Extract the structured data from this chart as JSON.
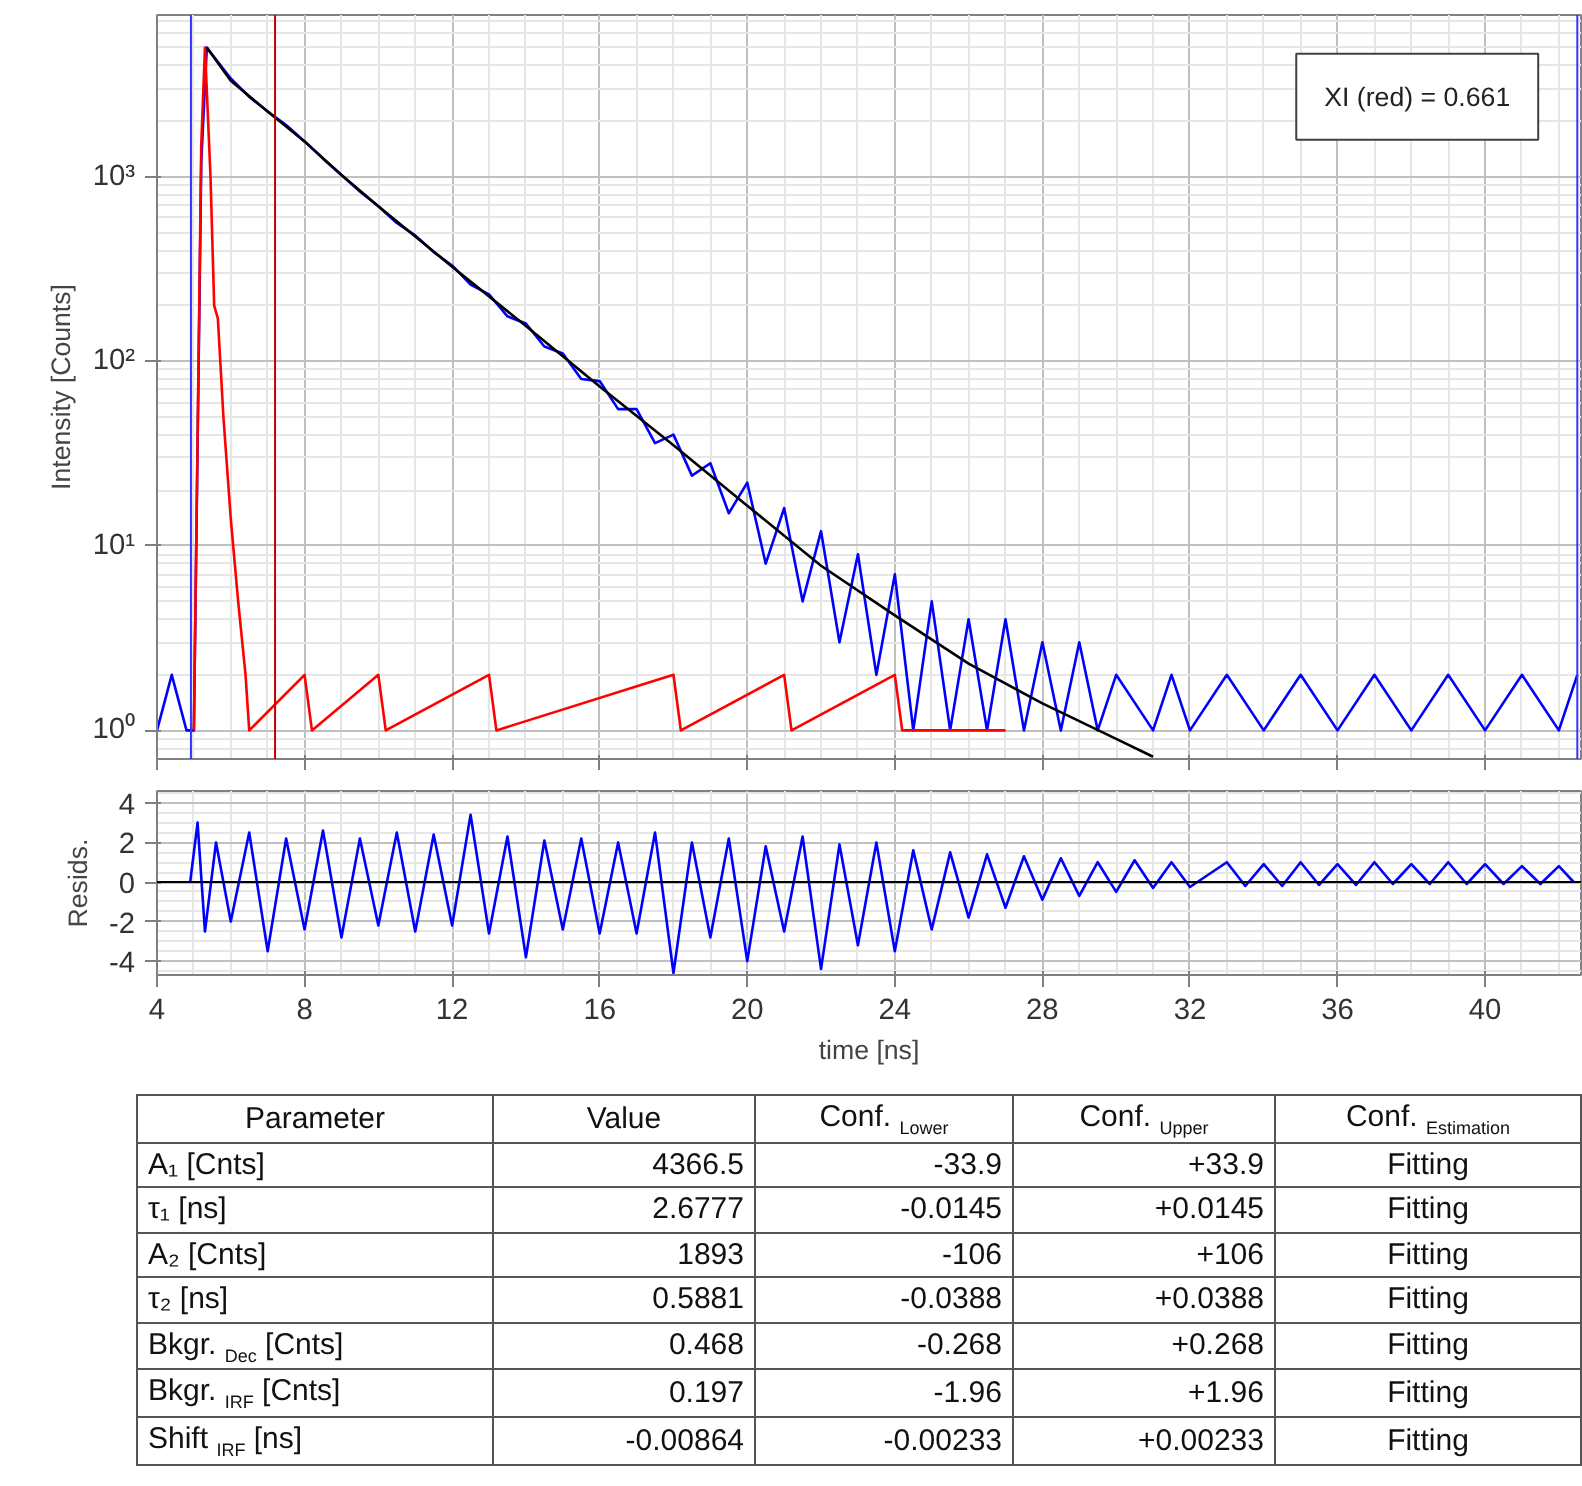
{
  "chart_data": [
    {
      "type": "line",
      "ylabel": "Intensity [Counts]",
      "log": "y",
      "grid": true,
      "tick_labels": "y",
      "xlim": [
        4,
        42.6
      ],
      "ylim": [
        0.7,
        7500
      ],
      "xticks": [
        4,
        8,
        12,
        16,
        20,
        24,
        28,
        32,
        36,
        40
      ],
      "yticks": [
        {
          "value": 1,
          "label": "10⁰"
        },
        {
          "value": 10,
          "label": "10¹"
        },
        {
          "value": 100,
          "label": "10²"
        },
        {
          "value": 1000,
          "label": "10³"
        }
      ],
      "annotations": [
        "XI (red) = 0.661"
      ],
      "ref_lines": [
        {
          "axis": "x",
          "value": 4.92,
          "color": "#3333ff"
        },
        {
          "axis": "x",
          "value": 7.2,
          "color": "#c00000"
        },
        {
          "axis": "x",
          "value": 42.5,
          "color": "#3333ff"
        }
      ],
      "series": [
        {
          "color": "#0000ff",
          "x": [
            4.0,
            4.4,
            4.8,
            5.0,
            5.2,
            5.35,
            5.6,
            6,
            6.5,
            7,
            7.5,
            8,
            8.5,
            9,
            9.5,
            10,
            10.5,
            11,
            11.5,
            12,
            12.5,
            13,
            13.5,
            14,
            14.5,
            15,
            15.5,
            16,
            16.5,
            17,
            17.5,
            18,
            18.5,
            19,
            19.5,
            20,
            20.5,
            21,
            21.5,
            22,
            22.5,
            23,
            23.5,
            24,
            24.5,
            25,
            25.5,
            26,
            26.5,
            27,
            27.5,
            28,
            28.5,
            29,
            29.5,
            30,
            31,
            31.5,
            32,
            33,
            34,
            35,
            36,
            37,
            38,
            39,
            40,
            41,
            42,
            42.5
          ],
          "values": [
            1,
            2,
            1,
            1,
            1200,
            5000,
            4300,
            3400,
            2700,
            2250,
            1900,
            1550,
            1250,
            1020,
            830,
            690,
            560,
            480,
            390,
            330,
            260,
            230,
            175,
            160,
            120,
            110,
            80,
            78,
            55,
            55,
            36,
            40,
            24,
            28,
            15,
            22,
            8,
            16,
            5,
            12,
            3,
            9,
            2,
            7,
            1,
            5,
            1,
            4,
            1,
            4,
            1,
            3,
            1,
            3,
            1,
            2,
            1,
            2,
            1,
            2,
            1,
            2,
            1,
            2,
            1,
            2,
            1,
            2,
            1,
            2
          ]
        },
        {
          "color": "#ff0000",
          "x": [
            5.0,
            5.2,
            5.3,
            5.45,
            5.55,
            5.65,
            5.8,
            6.0,
            6.2,
            6.4,
            6.5,
            8,
            8.2,
            10,
            10.2,
            13,
            13.2,
            18,
            18.2,
            21,
            21.2,
            24,
            24.2,
            27
          ],
          "values": [
            1,
            1500,
            5000,
            1000,
            200,
            170,
            50,
            14,
            5,
            2,
            1,
            2,
            1,
            2,
            1,
            2,
            1,
            2,
            1,
            2,
            1,
            2,
            1,
            1
          ]
        },
        {
          "color": "#000000",
          "x": [
            5.35,
            6,
            7,
            8,
            9,
            10,
            12,
            14,
            16,
            18,
            20,
            22,
            24,
            26,
            28,
            30,
            31
          ],
          "values": [
            5000,
            3300,
            2250,
            1550,
            1020,
            690,
            325,
            155,
            73,
            35,
            16.5,
            7.8,
            4.2,
            2.3,
            1.4,
            0.9,
            0.72
          ]
        }
      ]
    },
    {
      "type": "line",
      "xlabel": "time [ns]",
      "ylabel": "Resids.",
      "grid": true,
      "xlim": [
        4,
        42.6
      ],
      "ylim": [
        -4.7,
        4.6
      ],
      "xticks": [
        4,
        8,
        12,
        16,
        20,
        24,
        28,
        32,
        36,
        40
      ],
      "yticks": [
        -4,
        -2,
        0,
        2,
        4
      ],
      "ref_lines": [
        {
          "axis": "y",
          "value": 0,
          "color": "#000000"
        }
      ],
      "series": [
        {
          "color": "#0000ff",
          "x": [
            4.9,
            5.1,
            5.3,
            5.6,
            6,
            6.5,
            7,
            7.5,
            8,
            8.5,
            9,
            9.5,
            10,
            10.5,
            11,
            11.5,
            12,
            12.5,
            13,
            13.5,
            14,
            14.5,
            15,
            15.5,
            16,
            16.5,
            17,
            17.5,
            18,
            18.5,
            19,
            19.5,
            20,
            20.5,
            21,
            21.5,
            22,
            22.5,
            23,
            23.5,
            24,
            24.5,
            25,
            25.5,
            26,
            26.5,
            27,
            27.5,
            28,
            28.5,
            29,
            29.5,
            30,
            30.5,
            31,
            31.5,
            32,
            33,
            33.5,
            34,
            34.5,
            35,
            35.5,
            36,
            36.5,
            37,
            37.5,
            38,
            38.5,
            39,
            39.5,
            40,
            40.5,
            41,
            41.5,
            42,
            42.4
          ],
          "values": [
            0,
            3,
            -2.5,
            2,
            -2,
            2.5,
            -3.5,
            2.2,
            -2.4,
            2.6,
            -2.8,
            2.2,
            -2.2,
            2.5,
            -2.5,
            2.4,
            -2.2,
            3.4,
            -2.6,
            2.3,
            -3.8,
            2.1,
            -2.4,
            2.2,
            -2.6,
            2.0,
            -2.6,
            2.5,
            -4.6,
            2.0,
            -2.8,
            2.2,
            -4.0,
            1.8,
            -2.5,
            2.3,
            -4.4,
            1.9,
            -3.2,
            2.0,
            -3.5,
            1.6,
            -2.4,
            1.5,
            -1.8,
            1.4,
            -1.3,
            1.3,
            -0.9,
            1.2,
            -0.7,
            1.0,
            -0.5,
            1.1,
            -0.3,
            1.0,
            -0.25,
            1.0,
            -0.2,
            0.9,
            -0.2,
            1.0,
            -0.15,
            0.9,
            -0.15,
            1.0,
            -0.1,
            0.9,
            -0.1,
            1.0,
            -0.1,
            0.9,
            -0.1,
            0.8,
            -0.1,
            0.8,
            0
          ]
        }
      ]
    },
    {
      "type": "other",
      "ylabel": "Parameter",
      "categories": [
        "Value",
        "Conf. $_{Lower}$",
        "Conf. $_{Upper}$",
        "Conf. $_{Estimation}$"
      ],
      "y_categories": [
        "A₁ [Cnts]",
        "τ₁ [ns]",
        "A₂ [Cnts]",
        "τ₂ [ns]",
        "Bkgr. $_{Dec}$ [Cnts]",
        "Bkgr. $_{IRF}$ [Cnts]",
        "Shift $_{IRF}$ [ns]"
      ],
      "cell_labels": [
        [
          "4366.5",
          "-33.9",
          "+33.9",
          "Fitting"
        ],
        [
          "2.6777",
          "-0.0145",
          "+0.0145",
          "Fitting"
        ],
        [
          "1893",
          "-106",
          "+106",
          "Fitting"
        ],
        [
          "0.5881",
          "-0.0388",
          "+0.0388",
          "Fitting"
        ],
        [
          "0.468",
          "-0.268",
          "+0.268",
          "Fitting"
        ],
        [
          "0.197",
          "-1.96",
          "+1.96",
          "Fitting"
        ],
        [
          "-0.00864",
          "-0.00233",
          "+0.00233",
          "Fitting"
        ]
      ]
    }
  ]
}
